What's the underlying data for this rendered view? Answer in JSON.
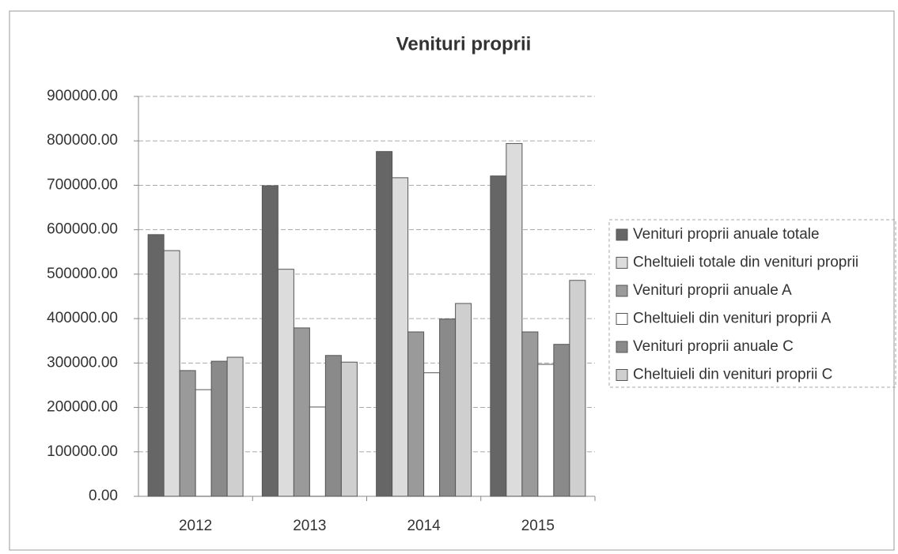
{
  "chart_data": {
    "type": "bar",
    "title": "Venituri proprii",
    "categories": [
      "2012",
      "2013",
      "2014",
      "2015"
    ],
    "series": [
      {
        "name": "Venituri proprii anuale totale",
        "color": "#666666",
        "values": [
          589000,
          699000,
          776000,
          721000
        ]
      },
      {
        "name": "Cheltuieli totale din venituri proprii",
        "color": "#dcdcdc",
        "values": [
          553000,
          511000,
          717000,
          794000
        ]
      },
      {
        "name": "Venituri proprii anuale A",
        "color": "#9a9a9a",
        "values": [
          283000,
          379000,
          370000,
          370000
        ]
      },
      {
        "name": "Cheltuieli din venituri proprii A",
        "color": "#ffffff",
        "values": [
          240000,
          201000,
          278000,
          297000
        ]
      },
      {
        "name": "Venituri proprii anuale C",
        "color": "#8a8a8a",
        "values": [
          304000,
          317000,
          399000,
          342000
        ]
      },
      {
        "name": "Cheltuieli din venituri proprii C",
        "color": "#cfcfcf",
        "values": [
          313000,
          302000,
          434000,
          486000
        ]
      }
    ],
    "ylim": [
      0,
      900000
    ],
    "yticks": [
      {
        "value": 0,
        "label": "0.00"
      },
      {
        "value": 100000,
        "label": "100000.00"
      },
      {
        "value": 200000,
        "label": "200000.00"
      },
      {
        "value": 300000,
        "label": "300000.00"
      },
      {
        "value": 400000,
        "label": "400000.00"
      },
      {
        "value": 500000,
        "label": "500000.00"
      },
      {
        "value": 600000,
        "label": "600000.00"
      },
      {
        "value": 700000,
        "label": "700000.00"
      },
      {
        "value": 800000,
        "label": "800000.00"
      },
      {
        "value": 900000,
        "label": "900000.00"
      }
    ],
    "grid": true,
    "legend": "right"
  }
}
